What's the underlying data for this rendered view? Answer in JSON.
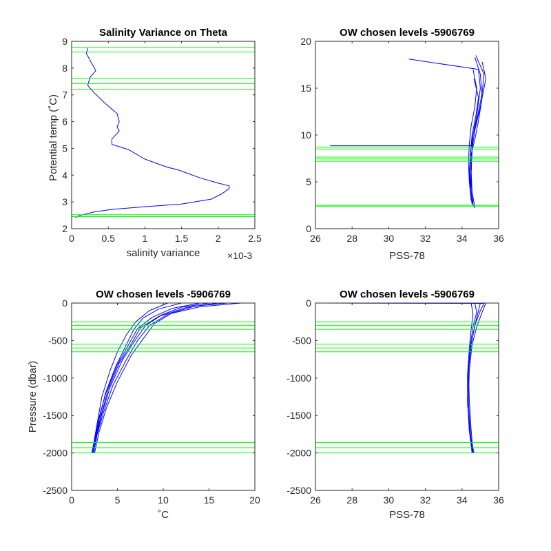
{
  "colors": {
    "profile": "#0000ff",
    "levels": "#00ff00",
    "axes": "#262626"
  },
  "chart_data": [
    {
      "id": "p1",
      "type": "line",
      "title": "Salinity Variance on Theta",
      "xlabel": "salinity variance",
      "ylabel": "Potential temp (˚C)",
      "x_exponent": "×10-3",
      "xlim": [
        0,
        2.5
      ],
      "ylim": [
        2,
        9
      ],
      "xticks": [
        0,
        0.5,
        1,
        1.5,
        2,
        2.5
      ],
      "xticklabels": [
        "0",
        "0.5",
        "1",
        "1.5",
        "2",
        "2.5"
      ],
      "yticks": [
        2,
        3,
        4,
        5,
        6,
        7,
        8,
        9
      ],
      "yticklabels": [
        "2",
        "3",
        "4",
        "5",
        "6",
        "7",
        "8",
        "9"
      ],
      "x_scale_note": "x values in units of 1e-3",
      "series": [
        {
          "x": [
            0.05,
            0.12,
            0.3,
            0.55,
            1.0,
            1.5,
            1.9,
            2.05,
            2.15,
            2.15,
            2.0,
            1.75,
            1.45,
            1.3,
            1.0,
            0.78,
            0.55,
            0.55,
            0.65,
            0.62,
            0.65,
            0.62,
            0.45,
            0.3,
            0.22,
            0.25,
            0.33,
            0.2,
            0.22
          ],
          "y": [
            2.42,
            2.5,
            2.62,
            2.72,
            2.82,
            2.92,
            3.1,
            3.3,
            3.5,
            3.6,
            3.7,
            3.9,
            4.2,
            4.3,
            4.6,
            4.95,
            5.15,
            5.35,
            5.65,
            5.8,
            6.0,
            6.3,
            6.7,
            7.1,
            7.35,
            7.65,
            7.9,
            8.55,
            8.75
          ]
        }
      ],
      "levels": [
        2.45,
        2.52,
        7.2,
        7.42,
        7.62,
        8.6,
        8.78
      ]
    },
    {
      "id": "p2",
      "type": "line",
      "title": "OW chosen levels -5906769",
      "xlabel": "PSS-78",
      "ylabel": "",
      "xlim": [
        26,
        36
      ],
      "ylim": [
        0,
        20
      ],
      "xticks": [
        26,
        28,
        30,
        32,
        34,
        36
      ],
      "xticklabels": [
        "26",
        "28",
        "30",
        "32",
        "34",
        "36"
      ],
      "yticks": [
        0,
        5,
        10,
        15,
        20
      ],
      "yticklabels": [
        "0",
        "5",
        "10",
        "15",
        "20"
      ],
      "series": [
        {
          "x": [
            31.1,
            34.9,
            35.0,
            34.8,
            34.6,
            34.55,
            34.5,
            34.5,
            34.55,
            34.65
          ],
          "y": [
            18.1,
            17.0,
            15.0,
            12.0,
            10.0,
            8.5,
            6.0,
            4.0,
            3.0,
            2.3
          ]
        },
        {
          "x": [
            26.8,
            34.6
          ],
          "y": [
            8.85,
            8.85
          ]
        },
        {
          "x": [
            34.7,
            35.0,
            35.1,
            34.9,
            34.7,
            34.5,
            34.45,
            34.5,
            34.6
          ],
          "y": [
            18.3,
            16.5,
            14.0,
            11.5,
            9.5,
            8.0,
            6.0,
            4.0,
            2.5
          ]
        },
        {
          "x": [
            34.75,
            35.2,
            35.1,
            34.85,
            34.6,
            34.45,
            34.4,
            34.45,
            34.55
          ],
          "y": [
            18.5,
            16.5,
            14.5,
            12.0,
            10.0,
            8.0,
            6.0,
            4.0,
            2.6
          ]
        },
        {
          "x": [
            34.6,
            34.8,
            34.7,
            34.5,
            34.4,
            34.35,
            34.4,
            34.5
          ],
          "y": [
            17.0,
            15.0,
            13.0,
            11.0,
            9.0,
            7.0,
            5.0,
            3.0
          ]
        },
        {
          "x": [
            35.1,
            35.3,
            35.0,
            34.7,
            34.55,
            34.5,
            34.55,
            34.7
          ],
          "y": [
            17.8,
            16.0,
            13.0,
            10.5,
            8.5,
            6.0,
            4.0,
            2.2
          ]
        },
        {
          "x": [
            34.65,
            34.9,
            34.75,
            34.55,
            34.45,
            34.4,
            34.5,
            34.6
          ],
          "y": [
            16.0,
            14.0,
            12.0,
            10.0,
            8.0,
            6.0,
            4.0,
            2.8
          ]
        }
      ],
      "levels": [
        2.4,
        2.5,
        7.2,
        7.45,
        7.65,
        8.5,
        8.7
      ]
    },
    {
      "id": "p3",
      "type": "line",
      "title": "OW chosen levels -5906769",
      "xlabel": "˚C",
      "ylabel": "Pressure (dbar)",
      "xlim": [
        0,
        20
      ],
      "ylim": [
        -2500,
        0
      ],
      "xticks": [
        0,
        5,
        10,
        15,
        20
      ],
      "xticklabels": [
        "0",
        "5",
        "10",
        "15",
        "20"
      ],
      "yticks": [
        -2500,
        -2000,
        -1500,
        -1000,
        -500,
        0
      ],
      "yticklabels": [
        "-2500",
        "-2000",
        "-1500",
        "-1000",
        "-500",
        "0"
      ],
      "series": [
        {
          "x": [
            18.5,
            14.0,
            10.5,
            8.5,
            7.2,
            6.0,
            4.5,
            3.5,
            2.8,
            2.4
          ],
          "y": [
            0,
            -50,
            -150,
            -300,
            -500,
            -750,
            -1100,
            -1450,
            -1750,
            -2000
          ]
        },
        {
          "x": [
            16.0,
            12.5,
            9.5,
            7.5,
            6.5,
            5.2,
            4.0,
            3.2,
            2.6,
            2.3
          ],
          "y": [
            0,
            -60,
            -180,
            -330,
            -550,
            -800,
            -1150,
            -1500,
            -1800,
            -2000
          ]
        },
        {
          "x": [
            12.0,
            9.5,
            7.8,
            6.8,
            5.8,
            4.8,
            3.7,
            3.0,
            2.5,
            2.2
          ],
          "y": [
            0,
            -80,
            -200,
            -350,
            -600,
            -850,
            -1200,
            -1550,
            -1850,
            -2000
          ]
        },
        {
          "x": [
            10.5,
            8.5,
            7.0,
            6.0,
            5.0,
            4.2,
            3.3,
            2.8,
            2.4,
            2.2
          ],
          "y": [
            0,
            -100,
            -250,
            -420,
            -650,
            -900,
            -1250,
            -1600,
            -1880,
            -2000
          ]
        },
        {
          "x": [
            17.0,
            13.5,
            11.0,
            9.0,
            7.8,
            6.5,
            5.0,
            3.8,
            3.0,
            2.5
          ],
          "y": [
            0,
            -40,
            -130,
            -280,
            -480,
            -700,
            -1050,
            -1400,
            -1720,
            -2000
          ]
        },
        {
          "x": [
            14.0,
            11.0,
            8.8,
            7.2,
            6.2,
            5.0,
            3.8,
            3.0,
            2.5,
            2.3
          ],
          "y": [
            0,
            -70,
            -190,
            -340,
            -560,
            -820,
            -1180,
            -1520,
            -1820,
            -2000
          ]
        },
        {
          "x": [
            15.0,
            12.0,
            9.8,
            8.0,
            6.8,
            5.5,
            4.2,
            3.3,
            2.7,
            2.4
          ],
          "y": [
            0,
            -55,
            -160,
            -310,
            -520,
            -770,
            -1120,
            -1480,
            -1780,
            -2000
          ]
        }
      ],
      "levels": [
        -250,
        -300,
        -350,
        -550,
        -600,
        -650,
        -1860,
        -1930,
        -2000
      ]
    },
    {
      "id": "p4",
      "type": "line",
      "title": "OW chosen levels -5906769",
      "xlabel": "PSS-78",
      "ylabel": "",
      "xlim": [
        26,
        36
      ],
      "ylim": [
        -2500,
        0
      ],
      "xticks": [
        26,
        28,
        30,
        32,
        34,
        36
      ],
      "xticklabels": [
        "26",
        "28",
        "30",
        "32",
        "34",
        "36"
      ],
      "yticks": [
        -2500,
        -2000,
        -1500,
        -1000,
        -500,
        0
      ],
      "yticklabels": [
        "-2500",
        "-2000",
        "-1500",
        "-1000",
        "-500",
        "0"
      ],
      "series": [
        {
          "x": [
            26.8,
            35.2,
            35.0,
            34.7,
            34.5,
            34.35,
            34.4,
            34.5,
            34.6
          ],
          "y": [
            0,
            -5,
            -100,
            -300,
            -550,
            -900,
            -1300,
            -1700,
            -2000
          ]
        },
        {
          "x": [
            35.3,
            35.1,
            34.8,
            34.55,
            34.4,
            34.35,
            34.45,
            34.55
          ],
          "y": [
            0,
            -120,
            -320,
            -560,
            -900,
            -1300,
            -1700,
            -2000
          ]
        },
        {
          "x": [
            34.7,
            34.8,
            34.6,
            34.45,
            34.35,
            34.3,
            34.4,
            34.6
          ],
          "y": [
            0,
            -120,
            -320,
            -560,
            -900,
            -1300,
            -1700,
            -2000
          ]
        },
        {
          "x": [
            34.5,
            34.6,
            34.5,
            34.4,
            34.3,
            34.3,
            34.45,
            34.65
          ],
          "y": [
            0,
            -150,
            -350,
            -600,
            -950,
            -1350,
            -1750,
            -2000
          ]
        },
        {
          "x": [
            35.0,
            34.9,
            34.7,
            34.5,
            34.35,
            34.3,
            34.4,
            34.55
          ],
          "y": [
            0,
            -100,
            -300,
            -550,
            -900,
            -1300,
            -1700,
            -2000
          ]
        }
      ],
      "levels": [
        -250,
        -300,
        -350,
        -550,
        -600,
        -650,
        -1860,
        -1930,
        -2000
      ]
    }
  ]
}
